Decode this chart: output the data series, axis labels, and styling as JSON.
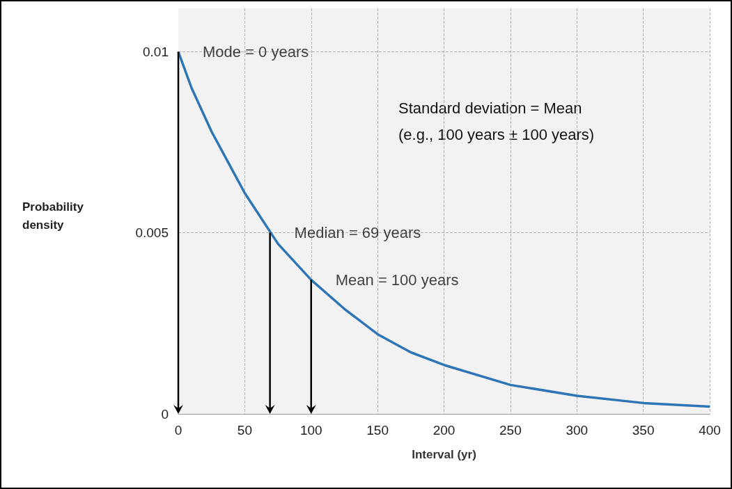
{
  "chart_data": {
    "type": "line",
    "xlabel": "Interval (yr)",
    "ylabel": "Probability density",
    "x": [
      0,
      10,
      25,
      50,
      75,
      100,
      125,
      150,
      175,
      200,
      250,
      300,
      350,
      400
    ],
    "series": [
      {
        "color": "#2e75b6",
        "values": [
          0.01,
          0.009,
          0.0078,
          0.0061,
          0.0047,
          0.0037,
          0.0029,
          0.0022,
          0.0017,
          0.00135,
          0.0008,
          0.0005,
          0.0003,
          0.0002
        ]
      }
    ],
    "xlim": [
      0,
      400
    ],
    "xticks": [
      0,
      50,
      100,
      150,
      200,
      250,
      300,
      350,
      400
    ],
    "ylim": [
      0,
      0.0112
    ],
    "yticks": [
      0,
      0.005,
      0.01
    ],
    "grid": true,
    "marker": "none",
    "line_style": "solid",
    "annotations": [
      {
        "text": "Mode = 0 years",
        "x": 0,
        "y": 0.01
      },
      {
        "text": "Median = 69 years",
        "x": 69,
        "y": 0.005
      },
      {
        "text": "Mean = 100 years",
        "x": 100,
        "y": 0.0037
      },
      "Standard deviation = Mean",
      "(e.g., 100 years ± 100 years)"
    ]
  }
}
